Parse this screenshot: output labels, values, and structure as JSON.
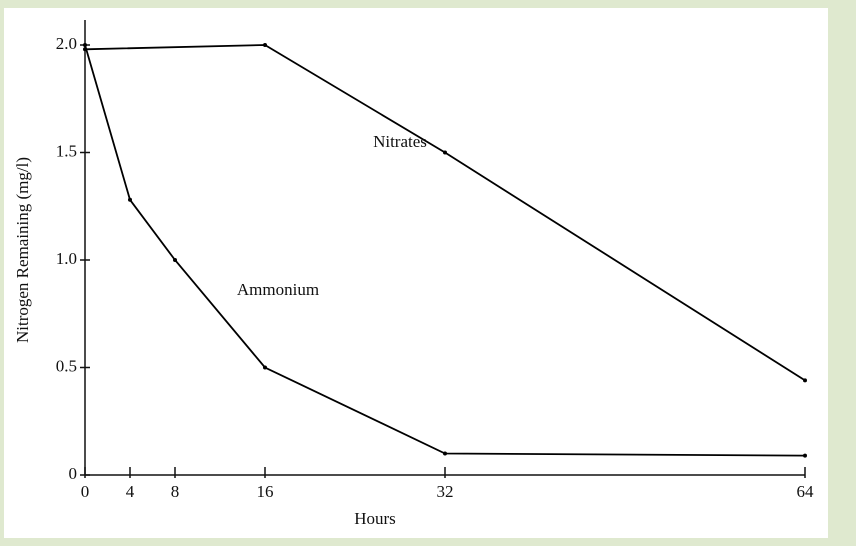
{
  "chart_data": {
    "type": "line",
    "xlabel": "Hours",
    "ylabel": "Nitrogen Remaining (mg/l)",
    "series": [
      {
        "name": "Nitrates",
        "color": "#000000",
        "x": [
          0,
          16,
          32,
          64
        ],
        "values": [
          1.98,
          2.0,
          1.5,
          0.44
        ]
      },
      {
        "name": "Ammonium",
        "color": "#000000",
        "x": [
          0,
          4,
          8,
          16,
          32,
          64
        ],
        "values": [
          2.0,
          1.28,
          1.0,
          0.5,
          0.1,
          0.09
        ]
      }
    ],
    "xlim": [
      0,
      64
    ],
    "xticks": [
      0,
      4,
      8,
      16,
      32,
      64
    ],
    "ylim": [
      0,
      2.0
    ],
    "yticks": [
      0,
      0.5,
      {
        "value": 1,
        "label": "1.0"
      },
      1.5,
      {
        "value": 2,
        "label": "2.0"
      }
    ],
    "grid": false
  }
}
